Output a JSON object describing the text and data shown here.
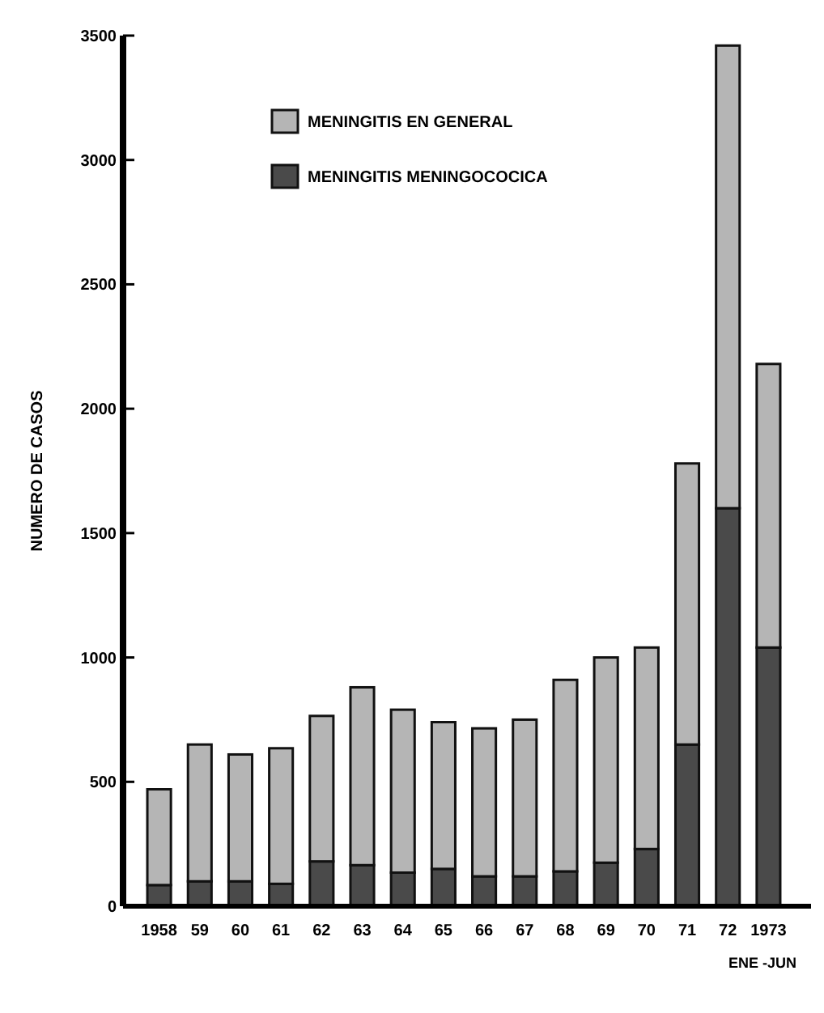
{
  "chart_data": {
    "type": "bar",
    "ylabel": "NUMERO DE CASOS",
    "categories": [
      "1958",
      "59",
      "60",
      "61",
      "62",
      "63",
      "64",
      "65",
      "66",
      "67",
      "68",
      "69",
      "70",
      "71",
      "72",
      "1973"
    ],
    "stacked": true,
    "series": [
      {
        "name": "MENINGITIS MENINGOCOCICA",
        "color": "#4a4a4a",
        "values": [
          85,
          100,
          100,
          90,
          180,
          165,
          135,
          150,
          120,
          120,
          140,
          175,
          230,
          650,
          1600,
          1040
        ]
      },
      {
        "name": "MENINGITIS EN GENERAL",
        "color": "#b5b5b5",
        "values": [
          385,
          550,
          510,
          545,
          585,
          715,
          655,
          590,
          595,
          630,
          770,
          825,
          810,
          1130,
          1860,
          1140
        ]
      }
    ],
    "ylim": [
      0,
      3500
    ],
    "yticks": [
      0,
      500,
      1000,
      1500,
      2000,
      2500,
      3000,
      3500
    ],
    "legend": "top",
    "grid": false,
    "annotations": [
      "ENE -JUN"
    ]
  }
}
